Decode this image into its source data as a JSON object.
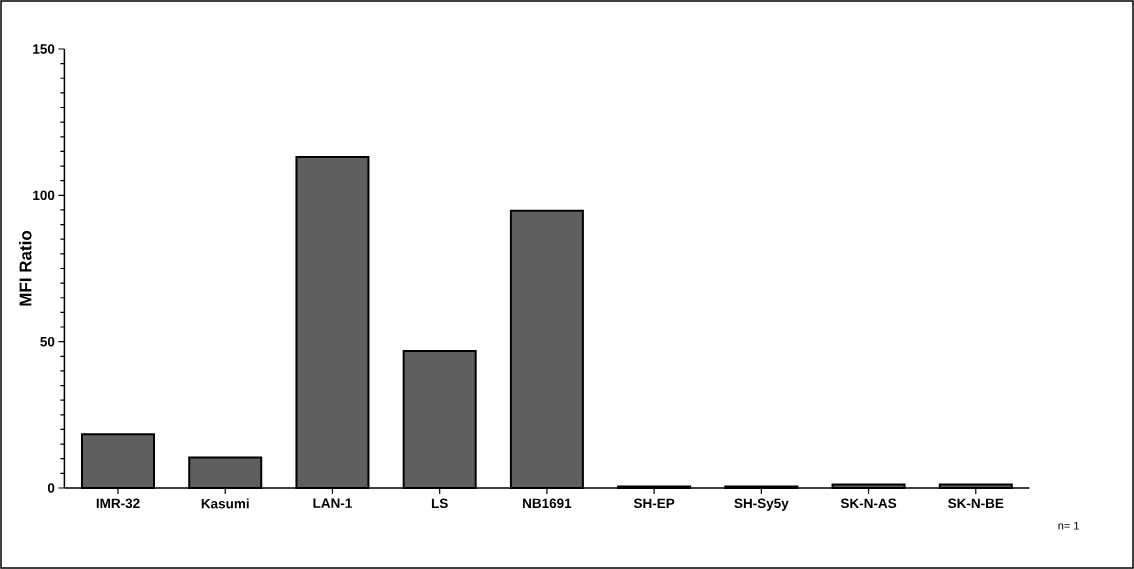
{
  "chart_data": {
    "type": "bar",
    "ylabel": "MFI Ratio",
    "categories": [
      "IMR-32",
      "Kasumi",
      "LAN-1",
      "LS",
      "NB1691",
      "SH-EP",
      "SH-Sy5y",
      "SK-N-AS",
      "SK-N-BE"
    ],
    "values": [
      18.4,
      10.4,
      113.1,
      46.8,
      94.7,
      0.5,
      0.5,
      1.2,
      1.2
    ],
    "color": "#5f5f5f",
    "ylim": [
      0,
      150
    ],
    "yticks": [
      0,
      50,
      100,
      150
    ],
    "grid": false,
    "annotations": [
      "n= 1"
    ]
  }
}
